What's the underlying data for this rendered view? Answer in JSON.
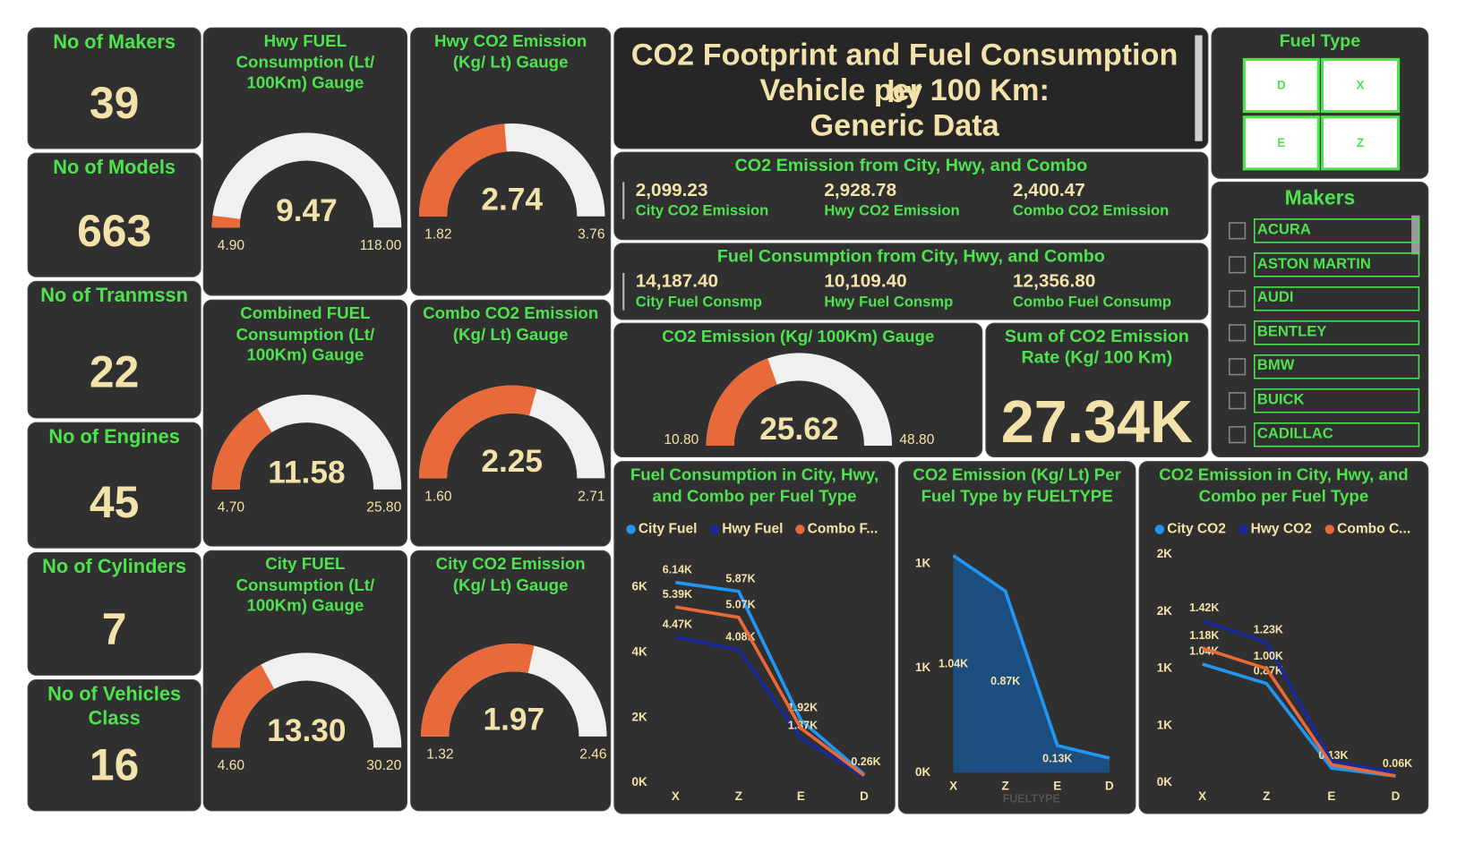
{
  "title": {
    "lines": [
      "CO2 Footprint and Fuel Consumption by",
      "Vehicle per 100 Km:",
      "Generic Data"
    ]
  },
  "kpis": [
    {
      "label": "No of Makers",
      "value": 39
    },
    {
      "label": "No of Models",
      "value": 663
    },
    {
      "label": "No of Tranmssn",
      "value": 22
    },
    {
      "label": "No of Engines",
      "value": 45
    },
    {
      "label": "No of Cylinders",
      "value": 7
    },
    {
      "label": "No of Vehicles Class",
      "value": 16
    }
  ],
  "gauges": [
    {
      "title": "Hwy FUEL Consumption (Lt/ 100Km) Gauge",
      "value": 9.47,
      "min": {
        "value": 4.9,
        "label": "4.90"
      },
      "max": {
        "value": 118,
        "label": "118.00"
      }
    },
    {
      "title": "Hwy CO2 Emission (Kg/ Lt) Gauge",
      "value": 2.74,
      "min": 1.82,
      "max": 3.76
    },
    {
      "title": "Combined FUEL Consumption (Lt/ 100Km) Gauge",
      "value": 11.58,
      "min": {
        "value": 4.7,
        "label": "4.70"
      },
      "max": {
        "value": 25.8,
        "label": "25.80"
      }
    },
    {
      "title": "Combo CO2 Emission (Kg/ Lt) Gauge",
      "value": 2.25,
      "min": {
        "value": 1.6,
        "label": "1.60"
      },
      "max": 2.71
    },
    {
      "title": "City FUEL Consumption (Lt/ 100Km) Gauge",
      "value": 13.3,
      "value_label": "13.30",
      "min": {
        "value": 4.6,
        "label": "4.60"
      },
      "max": {
        "value": 30.2,
        "label": "30.20"
      }
    },
    {
      "title": "City CO2 Emission (Kg/ Lt) Gauge",
      "value": 1.97,
      "min": 1.32,
      "max": 2.46
    },
    {
      "title": "CO2 Emission (Kg/ 100Km) Gauge",
      "value": 25.62,
      "min": {
        "value": 10.8,
        "label": "10.80"
      },
      "max": {
        "value": 48.8,
        "label": "48.80"
      }
    }
  ],
  "fuel_type_slicer": {
    "title": "Fuel Type",
    "options": [
      "D",
      "X",
      "E",
      "Z"
    ]
  },
  "makers_slicer": {
    "title": "Makers",
    "options": [
      "ACURA",
      "ASTON MARTIN",
      "AUDI",
      "BENTLEY",
      "BMW",
      "BUICK",
      "CADILLAC"
    ]
  },
  "multi_cards": [
    {
      "title": "CO2 Emission from City, Hwy, and Combo",
      "items": [
        {
          "value": "2,099.23",
          "label": "City CO2 Emission"
        },
        {
          "value": "2,928.78",
          "label": "Hwy CO2 Emission"
        },
        {
          "value": "2,400.47",
          "label": "Combo CO2 Emission"
        }
      ]
    },
    {
      "title": "Fuel Consumption from City, Hwy, and Combo",
      "items": [
        {
          "value": "14,187.40",
          "label": "City Fuel Consmp"
        },
        {
          "value": "10,109.40",
          "label": "Hwy Fuel Consmp"
        },
        {
          "value": "12,356.80",
          "label": "Combo Fuel Consump"
        }
      ]
    }
  ],
  "rate_card": {
    "title": "Sum of CO2 Emission Rate (Kg/ 100 Km)",
    "value": "27.34K"
  },
  "chart_data": [
    {
      "type": "line",
      "title": "Fuel Consumption in City, Hwy, and Combo per Fuel Type",
      "categories": [
        "X",
        "Z",
        "E",
        "D"
      ],
      "series": [
        {
          "name": "City Fuel",
          "color": "#2196f3",
          "values": [
            6140,
            5870,
            1920,
            260
          ],
          "value_labels": [
            "6.14K",
            "5.87K",
            "1.92K",
            "0.26K"
          ]
        },
        {
          "name": "Hwy Fuel",
          "color": "#1a2a9c",
          "values": [
            4470,
            4080,
            1370,
            190
          ],
          "value_labels": [
            "4.47K",
            "4.08K",
            "1.37K",
            null
          ]
        },
        {
          "name": "Combo F...",
          "color": "#e8693a",
          "values": [
            5390,
            5070,
            1670,
            227
          ],
          "value_labels": [
            "5.39K",
            "5.07K",
            null,
            null
          ]
        }
      ],
      "ylim": [
        0,
        7000
      ],
      "yticks": [
        {
          "value": 0,
          "label": "0K"
        },
        {
          "value": 2000,
          "label": "2K"
        },
        {
          "value": 4000,
          "label": "4K"
        },
        {
          "value": 6000,
          "label": "6K"
        }
      ]
    },
    {
      "type": "area",
      "title": "CO2 Emission (Kg/ Lt) Per Fuel Type by FUELTYPE",
      "x_label": "FUELTYPE",
      "categories": [
        "X",
        "Z",
        "E",
        "D"
      ],
      "color": "#2196f3",
      "fill": "#1c4f80",
      "values": [
        1040,
        870,
        130,
        70
      ],
      "value_labels": [
        "1.04K",
        "0.87K",
        "0.13K",
        null
      ],
      "ylim": [
        0,
        1050
      ],
      "yticks": [
        {
          "value": 0,
          "label": "0K"
        },
        {
          "value": 500,
          "label": "1K"
        },
        {
          "value": 1000,
          "label": "1K"
        }
      ]
    },
    {
      "type": "line",
      "title": "CO2 Emission in City, Hwy, and Combo per Fuel Type",
      "categories": [
        "X",
        "Z",
        "E",
        "D"
      ],
      "series": [
        {
          "name": "City CO2",
          "color": "#2196f3",
          "values": [
            1040,
            870,
            130,
            60
          ],
          "value_labels": [
            "1.04K",
            "0.87K",
            "0.13K",
            "0.06K"
          ]
        },
        {
          "name": "Hwy CO2",
          "color": "#1a2a9c",
          "values": [
            1420,
            1230,
            190,
            90
          ],
          "value_labels": [
            "1.42K",
            "1.23K",
            null,
            null
          ]
        },
        {
          "name": "Combo C...",
          "color": "#e8693a",
          "values": [
            1180,
            1000,
            160,
            60
          ],
          "value_labels": [
            "1.18K",
            "1.00K",
            null,
            null
          ]
        }
      ],
      "ylim": [
        0,
        2000
      ],
      "yticks": [
        {
          "value": 0,
          "label": "0K"
        },
        {
          "value": 500,
          "label": "1K"
        },
        {
          "value": 1000,
          "label": "1K"
        },
        {
          "value": 1500,
          "label": "2K"
        },
        {
          "value": 2000,
          "label": "2K"
        }
      ]
    }
  ]
}
